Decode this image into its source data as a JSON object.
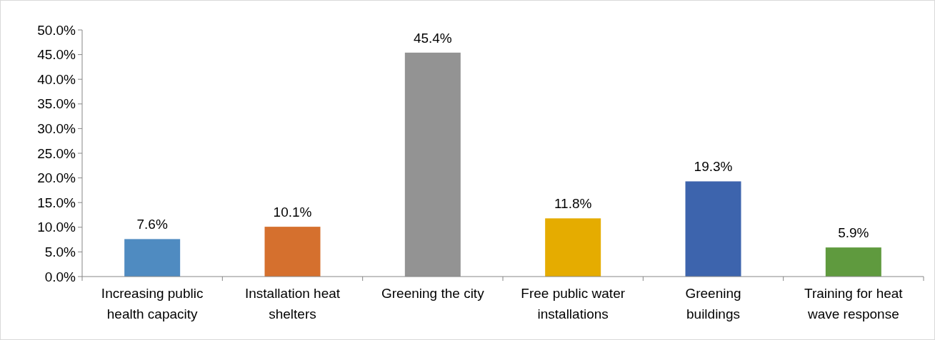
{
  "chart_data": {
    "type": "bar",
    "categories": [
      "Increasing public health capacity",
      "Installation heat shelters",
      "Greening the city",
      "Free public water installations",
      "Greening buildings",
      "Training for heat wave response"
    ],
    "values": [
      7.6,
      10.1,
      45.4,
      11.8,
      19.3,
      5.9
    ],
    "colors": [
      "#4f8bc1",
      "#d5702e",
      "#939393",
      "#e5ac00",
      "#3d64ad",
      "#5f9a3e"
    ],
    "value_labels": [
      "7.6%",
      "10.1%",
      "45.4%",
      "11.8%",
      "19.3%",
      "5.9%"
    ],
    "ylim": [
      0,
      50
    ],
    "yticks": [
      {
        "value": 0,
        "label": "0.0%"
      },
      {
        "value": 5,
        "label": "5.0%"
      },
      {
        "value": 10,
        "label": "10.0%"
      },
      {
        "value": 15,
        "label": "15.0%"
      },
      {
        "value": 20,
        "label": "20.0%"
      },
      {
        "value": 25,
        "label": "25.0%"
      },
      {
        "value": 30,
        "label": "30.0%"
      },
      {
        "value": 35,
        "label": "35.0%"
      },
      {
        "value": 40,
        "label": "40.0%"
      },
      {
        "value": 45,
        "label": "45.0%"
      },
      {
        "value": 50,
        "label": "50.0%"
      }
    ],
    "grid": false
  }
}
